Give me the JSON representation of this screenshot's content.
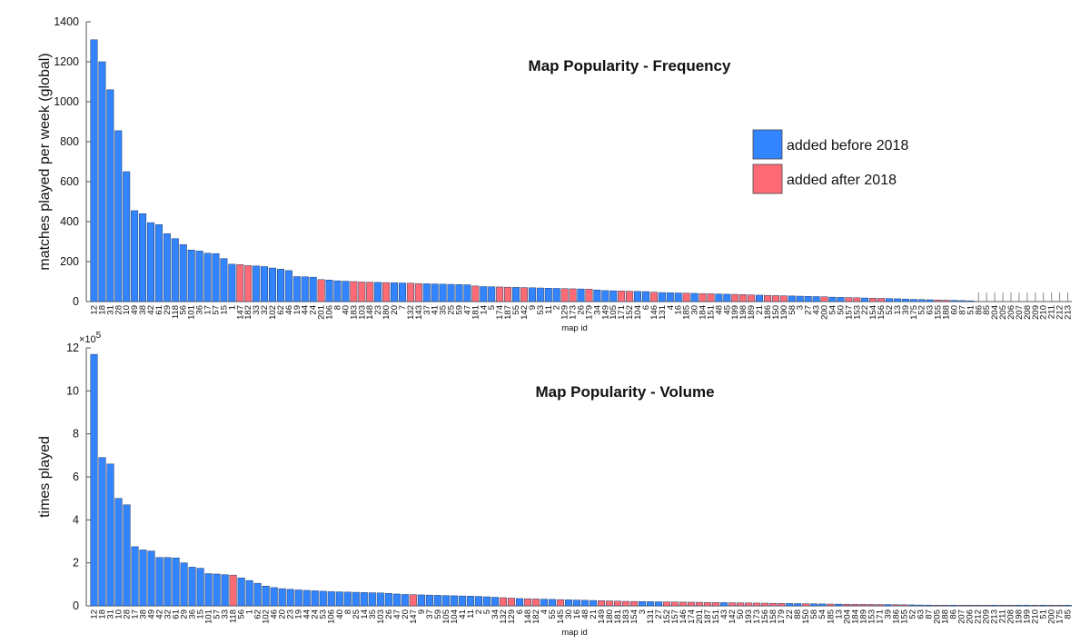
{
  "colors": {
    "before": "#3385ff",
    "after": "#ff6b75",
    "axis": "#555555",
    "text": "#111111",
    "stem": "#888888"
  },
  "legend": {
    "before_label": "added before 2018",
    "after_label": "added after 2018"
  },
  "chart_data": [
    {
      "type": "bar",
      "title": "Map Popularity - Frequency",
      "xlabel": "map id",
      "ylabel": "matches played per week (global)",
      "ylim": [
        0,
        1400
      ],
      "yticks": [
        0,
        200,
        400,
        600,
        800,
        1000,
        1200,
        1400
      ],
      "ytick_labels": [
        "0",
        "200",
        "400",
        "600",
        "800",
        "1000",
        "1200",
        "1400"
      ],
      "legend_position": "right",
      "categories": [
        "12",
        "18",
        "31",
        "28",
        "10",
        "49",
        "38",
        "42",
        "61",
        "29",
        "118",
        "56",
        "101",
        "36",
        "17",
        "57",
        "15",
        "1",
        "147",
        "182",
        "33",
        "32",
        "102",
        "62",
        "46",
        "19",
        "44",
        "24",
        "201",
        "106",
        "8",
        "40",
        "183",
        "103",
        "148",
        "23",
        "180",
        "20",
        "7",
        "132",
        "143",
        "37",
        "41",
        "35",
        "25",
        "59",
        "47",
        "181",
        "14",
        "5",
        "174",
        "187",
        "55",
        "142",
        "9",
        "53",
        "11",
        "2",
        "129",
        "173",
        "26",
        "179",
        "34",
        "149",
        "105",
        "171",
        "152",
        "104",
        "6",
        "146",
        "131",
        "4",
        "16",
        "185",
        "30",
        "184",
        "151",
        "48",
        "45",
        "199",
        "198",
        "189",
        "21",
        "186",
        "150",
        "190",
        "58",
        "3",
        "27",
        "43",
        "200",
        "54",
        "50",
        "157",
        "153",
        "22",
        "154",
        "156",
        "52",
        "13",
        "39",
        "175",
        "52",
        "63",
        "155",
        "188",
        "60",
        "87",
        "51",
        "86",
        "85",
        "204",
        "205",
        "206",
        "207",
        "208",
        "209",
        "210",
        "211",
        "212",
        "213"
      ],
      "values": [
        1310,
        1200,
        1060,
        855,
        650,
        455,
        440,
        395,
        385,
        340,
        315,
        285,
        258,
        253,
        242,
        240,
        215,
        187,
        185,
        180,
        178,
        175,
        168,
        162,
        155,
        125,
        124,
        122,
        110,
        108,
        104,
        102,
        100,
        98,
        97,
        96,
        95,
        94,
        93,
        92,
        90,
        89,
        88,
        87,
        86,
        85,
        84,
        78,
        75,
        74,
        73,
        72,
        71,
        70,
        69,
        68,
        67,
        66,
        65,
        64,
        63,
        62,
        58,
        55,
        54,
        53,
        52,
        51,
        50,
        47,
        45,
        44,
        43,
        42,
        41,
        40,
        39,
        38,
        37,
        36,
        35,
        33,
        32,
        31,
        30,
        29,
        28,
        27,
        26,
        25,
        24,
        22,
        21,
        20,
        19,
        18,
        17,
        16,
        15,
        14,
        12,
        11,
        10,
        9,
        8,
        7,
        6,
        5,
        4,
        0,
        0,
        0,
        0,
        0,
        0,
        0,
        0,
        0,
        0,
        0,
        0
      ],
      "after_2018": [
        0,
        0,
        0,
        0,
        0,
        0,
        0,
        0,
        0,
        0,
        0,
        0,
        0,
        0,
        0,
        0,
        0,
        0,
        1,
        1,
        0,
        0,
        0,
        0,
        0,
        0,
        0,
        0,
        1,
        0,
        0,
        0,
        1,
        1,
        1,
        0,
        1,
        0,
        0,
        1,
        1,
        0,
        0,
        0,
        0,
        0,
        0,
        1,
        0,
        0,
        1,
        1,
        0,
        1,
        0,
        0,
        0,
        0,
        1,
        1,
        0,
        1,
        0,
        0,
        0,
        1,
        1,
        0,
        0,
        1,
        0,
        0,
        0,
        1,
        0,
        1,
        1,
        0,
        0,
        1,
        1,
        1,
        0,
        1,
        1,
        1,
        0,
        0,
        0,
        0,
        1,
        0,
        0,
        1,
        1,
        0,
        1,
        1,
        0,
        0,
        0,
        0,
        0,
        0,
        1,
        1,
        0,
        0,
        0,
        0,
        0,
        0,
        0,
        0,
        0,
        0,
        0,
        0,
        0,
        0,
        0
      ]
    },
    {
      "type": "bar",
      "title": "Map Popularity - Volume",
      "xlabel": "map id",
      "ylabel": "times played",
      "ylim": [
        0,
        1200000
      ],
      "yticks": [
        0,
        200000,
        400000,
        600000,
        800000,
        1000000,
        1200000
      ],
      "ytick_labels": [
        "0",
        "2",
        "4",
        "6",
        "8",
        "10",
        "12"
      ],
      "exponent_label": "×10",
      "exponent_power": "5",
      "categories": [
        "12",
        "18",
        "31",
        "10",
        "28",
        "17",
        "38",
        "49",
        "42",
        "32",
        "61",
        "29",
        "36",
        "15",
        "101",
        "57",
        "33",
        "118",
        "56",
        "1",
        "62",
        "102",
        "46",
        "20",
        "23",
        "19",
        "44",
        "24",
        "53",
        "106",
        "40",
        "8",
        "25",
        "14",
        "35",
        "103",
        "26",
        "47",
        "20",
        "147",
        "9",
        "37",
        "59",
        "105",
        "104",
        "41",
        "11",
        "2",
        "5",
        "34",
        "132",
        "129",
        "6",
        "148",
        "182",
        "4",
        "55",
        "145",
        "30",
        "16",
        "48",
        "21",
        "149",
        "180",
        "181",
        "183",
        "154",
        "3",
        "131",
        "27",
        "152",
        "157",
        "146",
        "174",
        "201",
        "187",
        "151",
        "43",
        "142",
        "50",
        "193",
        "173",
        "156",
        "158",
        "179",
        "22",
        "88",
        "150",
        "58",
        "54",
        "185",
        "13",
        "204",
        "184",
        "189",
        "153",
        "171",
        "39",
        "186",
        "155",
        "52",
        "63",
        "87",
        "205",
        "188",
        "86",
        "207",
        "206",
        "212",
        "209",
        "213",
        "211",
        "208",
        "198",
        "199",
        "210",
        "51",
        "200",
        "175",
        "85"
      ],
      "values": [
        1170000,
        690000,
        660000,
        500000,
        470000,
        275000,
        260000,
        255000,
        225000,
        225000,
        223000,
        200000,
        180000,
        175000,
        150000,
        148000,
        145000,
        143000,
        130000,
        118000,
        105000,
        92000,
        85000,
        80000,
        77000,
        74000,
        72000,
        70000,
        68000,
        66000,
        65000,
        64000,
        63000,
        62000,
        61000,
        60000,
        58000,
        55000,
        53000,
        52000,
        51000,
        50000,
        49000,
        48000,
        47000,
        46000,
        45000,
        44000,
        42000,
        40000,
        38000,
        36000,
        34000,
        33000,
        32000,
        31000,
        30000,
        29000,
        28000,
        27000,
        26000,
        25000,
        24000,
        23000,
        22000,
        21000,
        20500,
        20000,
        19500,
        19000,
        18500,
        18000,
        17500,
        17000,
        16500,
        16000,
        15500,
        15000,
        14500,
        14000,
        13500,
        13000,
        12500,
        12000,
        11500,
        11000,
        10500,
        10000,
        9500,
        9000,
        8500,
        8000,
        7500,
        7000,
        6800,
        6500,
        6200,
        6000,
        5500,
        5000,
        4500,
        4000,
        3500,
        3000,
        2800,
        2500,
        2200,
        2000,
        1800,
        1500,
        1200,
        1000,
        800,
        600,
        400,
        300,
        200,
        100,
        50,
        20
      ],
      "after_2018": [
        0,
        0,
        0,
        0,
        0,
        0,
        0,
        0,
        0,
        0,
        0,
        0,
        0,
        0,
        0,
        0,
        0,
        1,
        0,
        0,
        0,
        0,
        0,
        0,
        0,
        0,
        0,
        0,
        0,
        0,
        0,
        0,
        0,
        0,
        0,
        0,
        0,
        0,
        0,
        1,
        0,
        0,
        0,
        0,
        0,
        0,
        0,
        0,
        0,
        0,
        1,
        1,
        0,
        1,
        1,
        0,
        0,
        1,
        0,
        0,
        0,
        0,
        1,
        1,
        1,
        1,
        1,
        0,
        0,
        0,
        1,
        1,
        1,
        1,
        1,
        1,
        1,
        0,
        1,
        1,
        1,
        1,
        1,
        1,
        1,
        0,
        0,
        1,
        0,
        0,
        1,
        0,
        1,
        1,
        1,
        1,
        1,
        0,
        1,
        1,
        0,
        0,
        0,
        1,
        1,
        0,
        1,
        1,
        1,
        1,
        0,
        1,
        1,
        0,
        0,
        1,
        0,
        1,
        1,
        0
      ]
    }
  ]
}
